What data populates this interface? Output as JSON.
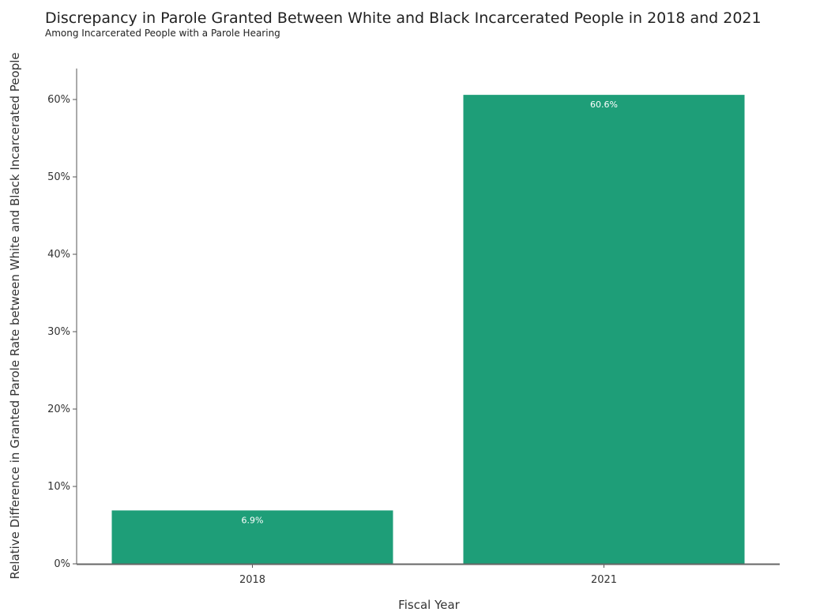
{
  "chart_data": {
    "type": "bar",
    "title": "Discrepancy in Parole Granted Between White and Black Incarcerated People in 2018 and 2021",
    "subtitle": "Among Incarcerated People with a Parole Hearing",
    "xlabel": "Fiscal Year",
    "ylabel": "Relative Difference in Granted Parole Rate between White and Black Incarcerated People",
    "categories": [
      "2018",
      "2021"
    ],
    "values": [
      6.9,
      60.6
    ],
    "data_labels": [
      "6.9%",
      "60.6%"
    ],
    "ylim": [
      0,
      64
    ],
    "yticks": [
      0,
      10,
      20,
      30,
      40,
      50,
      60
    ],
    "ytick_labels": [
      "0%",
      "10%",
      "20%",
      "30%",
      "40%",
      "50%",
      "60%"
    ],
    "bar_color": "#1e9e78",
    "grid": false,
    "legend": "none"
  }
}
